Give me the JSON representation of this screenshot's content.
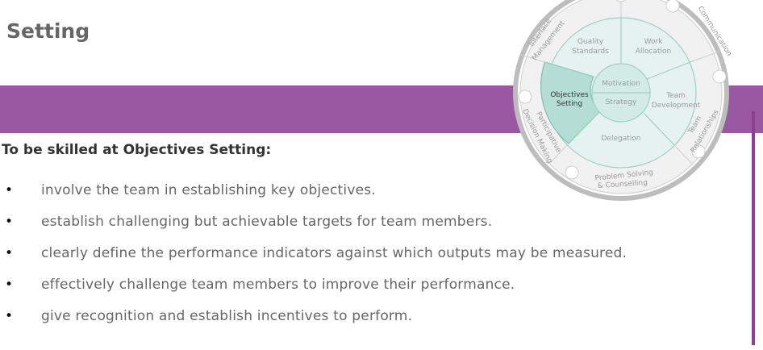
{
  "page": {
    "heading": "Setting",
    "intro": "To be skilled at Objectives Setting:",
    "bullets": [
      "involve the team in establishing key objectives.",
      "establish challenging but achievable targets for team members.",
      "clearly define the performance indicators against which outputs may be measured.",
      "effectively challenge team members to improve their performance.",
      "give recognition and establish incentives to perform."
    ],
    "bullet_symbol": "•"
  },
  "wheel": {
    "center_top": "Motivation",
    "center_bottom": "Strategy",
    "segments": {
      "quality_1": "Quality",
      "quality_2": "Standards",
      "work_1": "Work",
      "work_2": "Allocation",
      "team_dev_1": "Team",
      "team_dev_2": "Development",
      "delegation": "Delegation",
      "objectives_1": "Objectives",
      "objectives_2": "Setting"
    },
    "outer": {
      "interface_1": "Interface",
      "interface_2": "Management",
      "communication": "Communication",
      "team_rel_1": "Team",
      "team_rel_2": "Relationships",
      "problem_1": "Problem Solving",
      "problem_2": "& Counselling",
      "participative_1": "Participative",
      "participative_2": "Decision Making"
    },
    "colors": {
      "highlight": "#b3ddd5",
      "segment_fill": "#e6f2ef",
      "outer_fill": "#f1f1f1",
      "ring": "#bdbdbd",
      "lines": "#9fcfc3"
    }
  },
  "colors": {
    "band": "#9b58a2",
    "accent_line": "#8f3d8f",
    "body_text": "#666666",
    "heading_text": "#666666"
  }
}
